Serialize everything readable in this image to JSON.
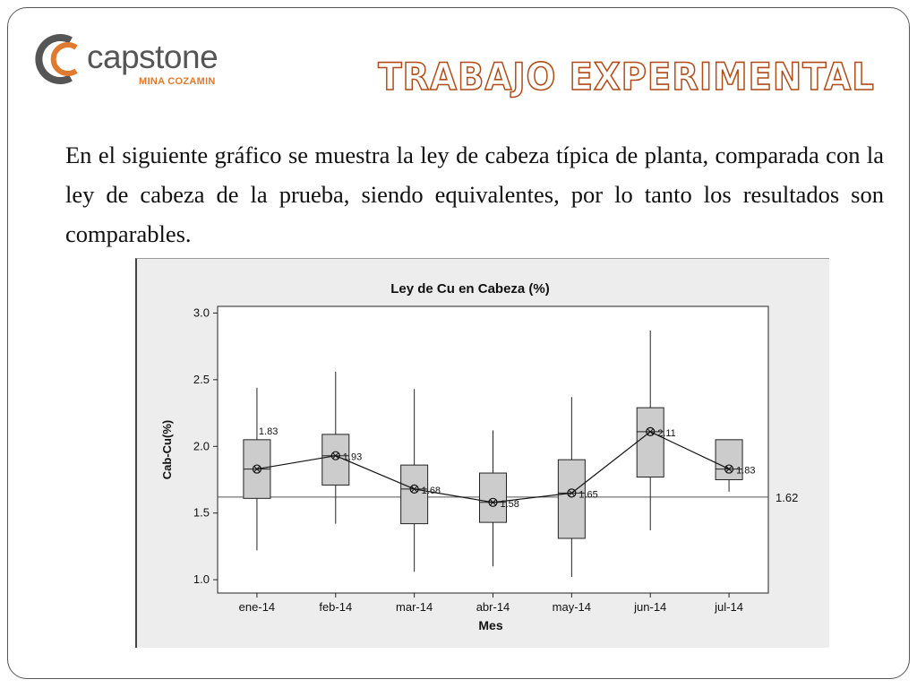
{
  "logo": {
    "word": "capstone",
    "subtitle": "MINA COZAMIN"
  },
  "slide": {
    "title": "TRABAJO EXPERIMENTAL",
    "body": "En el siguiente gráfico  se muestra la ley de cabeza típica de planta, comparada con la ley de cabeza de la prueba, siendo equivalentes, por lo tanto los resultados son comparables."
  },
  "colors": {
    "title_outline": "#b04a16",
    "logo_orange": "#e07a2e",
    "logo_gray": "#555555",
    "box_fill": "#cccccc",
    "chart_bg": "#ededed"
  },
  "chart_data": {
    "type": "box",
    "title": "Ley de Cu en Cabeza (%)",
    "xlabel": "Mes",
    "ylabel": "Cab-Cu(%)",
    "ylim": [
      0.9,
      3.05
    ],
    "yticks": [
      1.0,
      1.5,
      2.0,
      2.5,
      3.0
    ],
    "ytick_labels": [
      "1.0",
      "1.5",
      "2.0",
      "2.5",
      "3.0"
    ],
    "categories": [
      "ene-14",
      "feb-14",
      "mar-14",
      "abr-14",
      "may-14",
      "jun-14",
      "jul-14"
    ],
    "series": [
      {
        "min": [
          1.22,
          1.42,
          1.06,
          1.1,
          1.02,
          1.37,
          1.66
        ],
        "q1": [
          1.61,
          1.71,
          1.42,
          1.43,
          1.31,
          1.77,
          1.75
        ],
        "median": [
          1.83,
          1.93,
          1.68,
          1.58,
          1.65,
          2.11,
          1.83
        ],
        "q3": [
          2.05,
          2.09,
          1.86,
          1.8,
          1.9,
          2.29,
          2.05
        ],
        "max": [
          2.44,
          2.56,
          2.43,
          2.12,
          2.37,
          2.87,
          2.05
        ],
        "mean": [
          1.83,
          1.93,
          1.68,
          1.58,
          1.65,
          2.11,
          1.83
        ],
        "mean_labels": [
          "1.83",
          "1.93",
          "1.68",
          "1.58",
          "1.65",
          "2.11",
          "1.83"
        ]
      }
    ],
    "reference_line": {
      "value": 1.62,
      "label": "1.62"
    },
    "grid": false,
    "legend": "none"
  }
}
